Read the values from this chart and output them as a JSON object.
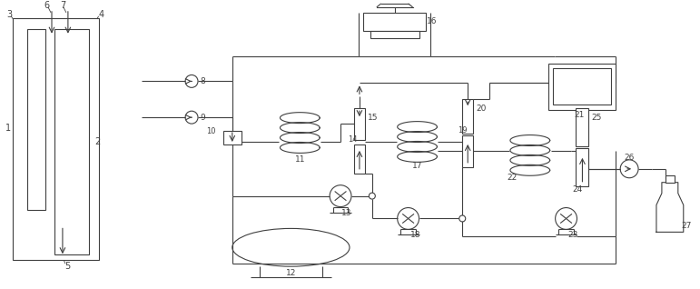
{
  "bg": "#ffffff",
  "lc": "#404040",
  "figsize": [
    7.71,
    3.18
  ],
  "dpi": 100
}
